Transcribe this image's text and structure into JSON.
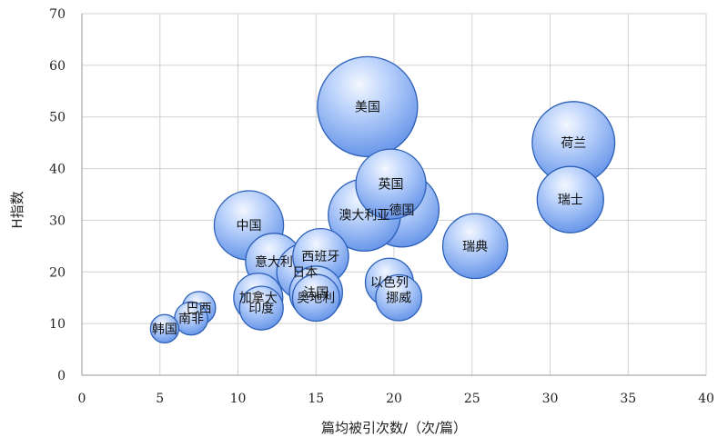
{
  "chart_data": {
    "type": "scatter",
    "title": "",
    "xlabel": "篇均被引次数/（次/篇）",
    "ylabel": "H指数",
    "xlim": [
      0,
      40
    ],
    "ylim": [
      0,
      70
    ],
    "xticks": [
      0,
      5,
      10,
      15,
      20,
      25,
      30,
      35,
      40
    ],
    "yticks": [
      0,
      10,
      20,
      30,
      40,
      50,
      60,
      70
    ],
    "grid": true,
    "bubble_color": "#7aa7f0",
    "series": [
      {
        "points": [
          {
            "label": "美国",
            "x": 18.3,
            "y": 52,
            "size": 1.0
          },
          {
            "label": "荷兰",
            "x": 31.5,
            "y": 45,
            "size": 0.68
          },
          {
            "label": "英国",
            "x": 19.8,
            "y": 37,
            "size": 0.49
          },
          {
            "label": "瑞士",
            "x": 31.3,
            "y": 34,
            "size": 0.44
          },
          {
            "label": "德国",
            "x": 20.5,
            "y": 32,
            "size": 0.55
          },
          {
            "label": "澳大利亚",
            "x": 18.1,
            "y": 31,
            "size": 0.52
          },
          {
            "label": "中国",
            "x": 10.7,
            "y": 29,
            "size": 0.48
          },
          {
            "label": "瑞典",
            "x": 25.2,
            "y": 25,
            "size": 0.42
          },
          {
            "label": "西班牙",
            "x": 15.3,
            "y": 23,
            "size": 0.31
          },
          {
            "label": "意大利",
            "x": 12.3,
            "y": 22,
            "size": 0.32
          },
          {
            "label": "日本",
            "x": 14.3,
            "y": 20,
            "size": 0.32
          },
          {
            "label": "以色列",
            "x": 19.7,
            "y": 18,
            "size": 0.23
          },
          {
            "label": "法国",
            "x": 15.0,
            "y": 16,
            "size": 0.28
          },
          {
            "label": "加拿大",
            "x": 11.3,
            "y": 15,
            "size": 0.24
          },
          {
            "label": "奥地利",
            "x": 15.0,
            "y": 15,
            "size": 0.22
          },
          {
            "label": "挪威",
            "x": 20.3,
            "y": 15,
            "size": 0.21
          },
          {
            "label": "印度",
            "x": 11.5,
            "y": 13,
            "size": 0.19
          },
          {
            "label": "巴西",
            "x": 7.5,
            "y": 13,
            "size": 0.11
          },
          {
            "label": "南非",
            "x": 7.0,
            "y": 11,
            "size": 0.11
          },
          {
            "label": "韩国",
            "x": 5.3,
            "y": 9,
            "size": 0.08
          }
        ]
      }
    ]
  }
}
